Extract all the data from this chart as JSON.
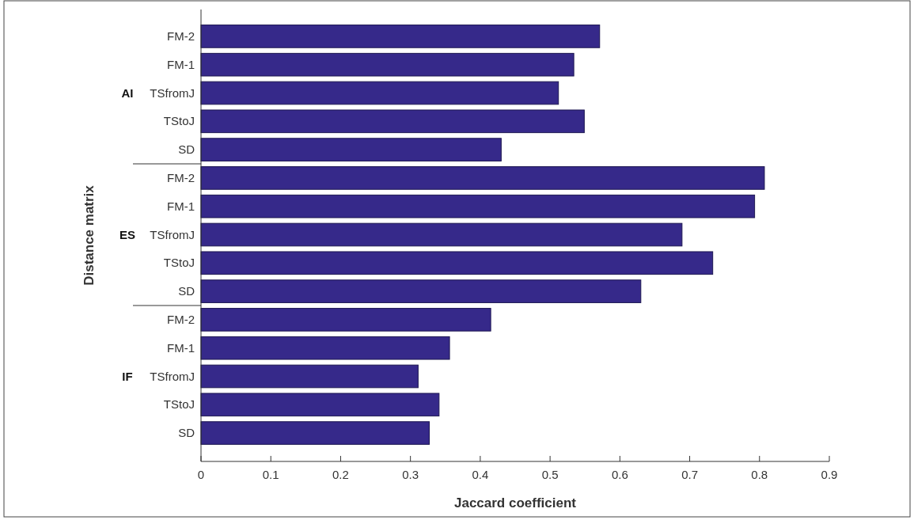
{
  "chart_data": {
    "type": "bar",
    "orientation": "horizontal",
    "xlabel": "Jaccard coefficient",
    "ylabel": "Distance matrix",
    "categories": [
      "FM-2",
      "FM-1",
      "TSfromJ",
      "TStoJ",
      "SD",
      "FM-2",
      "FM-1",
      "TSfromJ",
      "TStoJ",
      "SD",
      "FM-2",
      "FM-1",
      "TSfromJ",
      "TStoJ",
      "SD"
    ],
    "values": [
      0.571,
      0.534,
      0.512,
      0.549,
      0.43,
      0.807,
      0.793,
      0.689,
      0.733,
      0.63,
      0.415,
      0.356,
      0.311,
      0.341,
      0.327
    ],
    "color": "#36298a",
    "xlim": [
      0,
      0.9
    ],
    "xticks": [
      0,
      0.1,
      0.2,
      0.3,
      0.4,
      0.5,
      0.6,
      0.7,
      0.8,
      0.9
    ],
    "annotations": [
      "AI",
      "ES",
      "IF"
    ]
  }
}
